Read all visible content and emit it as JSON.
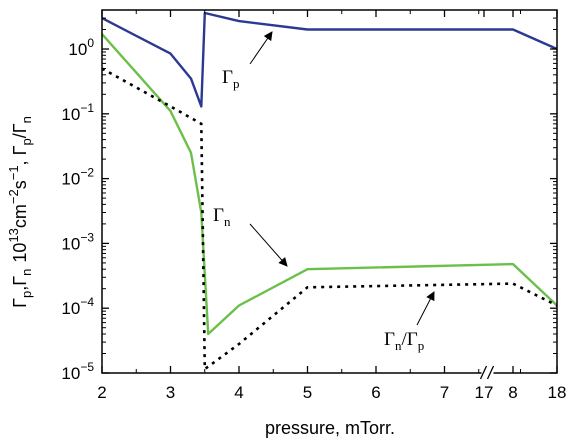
{
  "chart_data": {
    "type": "line",
    "xlabel": "pressure, mTorr.",
    "ylabel": {
      "main": "Γ",
      "sub_p": "p",
      "sub_n": "n",
      "unit": "10",
      "unit_exp": "13",
      "unit_rest": "cm",
      "unit_exp2": "−2",
      "unit_s": "s",
      "unit_exp3": "−1"
    },
    "y_scale": "log",
    "ylim": [
      1e-05,
      4
    ],
    "y_ticks": [
      {
        "value": 1e-05,
        "base": "10",
        "exp": "−5"
      },
      {
        "value": 0.0001,
        "base": "10",
        "exp": "−4"
      },
      {
        "value": 0.001,
        "base": "10",
        "exp": "−3"
      },
      {
        "value": 0.01,
        "base": "10",
        "exp": "−2"
      },
      {
        "value": 0.1,
        "base": "10",
        "exp": "−1"
      },
      {
        "value": 1,
        "base": "10",
        "exp": "0"
      }
    ],
    "x_ticks": [
      {
        "value": 2,
        "label": "2"
      },
      {
        "value": 3,
        "label": "3"
      },
      {
        "value": 4,
        "label": "4"
      },
      {
        "value": 5,
        "label": "5"
      },
      {
        "value": 6,
        "label": "6"
      },
      {
        "value": 7,
        "label": "7"
      },
      {
        "value": 8,
        "label": "8"
      },
      {
        "value": 17,
        "label": "17"
      },
      {
        "value": 18,
        "label": "18"
      }
    ],
    "x_axis_break": {
      "after": 8,
      "before": 17
    },
    "grid": false,
    "series": [
      {
        "name": "Γp",
        "color": "#2b3990",
        "style": "solid",
        "points": [
          [
            2,
            3.0
          ],
          [
            3,
            0.85
          ],
          [
            3.3,
            0.35
          ],
          [
            3.45,
            0.13
          ],
          [
            3.5,
            3.6
          ],
          [
            4,
            2.7
          ],
          [
            5,
            2.0
          ],
          [
            8,
            2.0
          ],
          [
            18,
            1.0
          ]
        ]
      },
      {
        "name": "Γn",
        "color": "#6cc04a",
        "style": "solid",
        "points": [
          [
            2,
            1.7
          ],
          [
            3,
            0.11
          ],
          [
            3.3,
            0.025
          ],
          [
            3.45,
            0.003
          ],
          [
            3.55,
            4e-05
          ],
          [
            4,
            0.00011
          ],
          [
            5,
            0.0004
          ],
          [
            8,
            0.00048
          ],
          [
            18,
            0.00011
          ]
        ]
      },
      {
        "name": "Γn/Γp",
        "color": "#000000",
        "style": "dotted",
        "points": [
          [
            2,
            0.5
          ],
          [
            3,
            0.13
          ],
          [
            3.45,
            0.07
          ],
          [
            3.5,
            1.15e-05
          ],
          [
            4,
            2.8e-05
          ],
          [
            5,
            0.00021
          ],
          [
            8,
            0.00024
          ],
          [
            18,
            0.00011
          ]
        ]
      }
    ],
    "annotations": [
      {
        "series": "Γp",
        "base": "Γ",
        "sub": "p"
      },
      {
        "series": "Γn",
        "base": "Γ",
        "sub": "n"
      },
      {
        "series": "Γn/Γp",
        "base1": "Γ",
        "sub1": "n",
        "slash": "/",
        "base2": "Γ",
        "sub2": "p"
      }
    ]
  }
}
